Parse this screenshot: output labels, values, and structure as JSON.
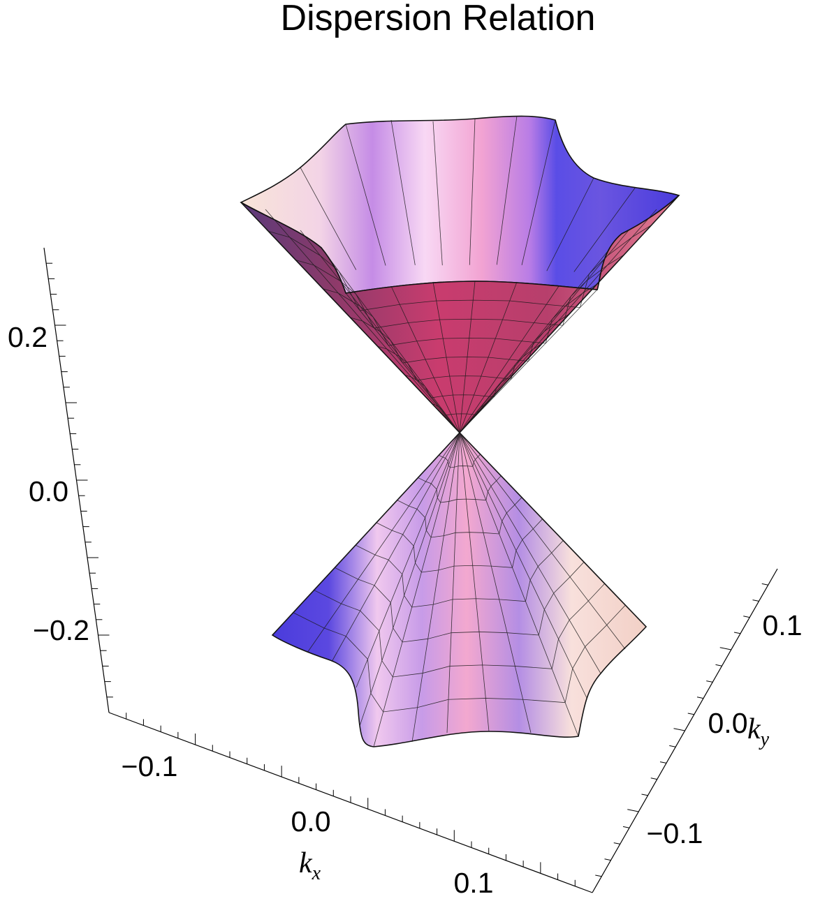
{
  "chart_data": {
    "type": "surface3d",
    "title": "Dispersion Relation",
    "axes": {
      "x": {
        "label": "k",
        "label_sub": "x",
        "range": [
          -0.15,
          0.15
        ],
        "ticks": [
          -0.1,
          0.0,
          0.1
        ],
        "tick_labels": [
          "−0.1",
          "0.0",
          "0.1"
        ]
      },
      "y": {
        "label": "k",
        "label_sub": "y",
        "range": [
          -0.15,
          0.15
        ],
        "ticks": [
          -0.1,
          0.0,
          0.1
        ],
        "tick_labels": [
          "−0.1",
          "0.0",
          "0.1"
        ]
      },
      "z": {
        "label": "",
        "range": [
          -0.3,
          0.3
        ],
        "ticks": [
          -0.2,
          0.0,
          0.2
        ],
        "tick_labels": [
          "−0.2",
          "0.0",
          "0.2"
        ]
      }
    },
    "surfaces": [
      {
        "name": "upper-band",
        "description_of_shape": "cone opening upward, E = +|k| with hexagonal warping",
        "apex": [
          0,
          0,
          0
        ]
      },
      {
        "name": "lower-band",
        "description_of_shape": "cone opening downward, E = -|k| with hexagonal warping",
        "apex": [
          0,
          0,
          0
        ]
      }
    ],
    "symmetry": "hexagonal (6-fold warping of the rim)",
    "colors": {
      "surface_pink": "#d6416f",
      "surface_blue": "#4a3cdc",
      "surface_light": "#f8e4d8",
      "surface_lavender": "#e9b8ef",
      "mesh_line": "#1a1a1a",
      "axis_line": "#000000"
    },
    "grid": false,
    "box": "partial (three visible axes)"
  }
}
